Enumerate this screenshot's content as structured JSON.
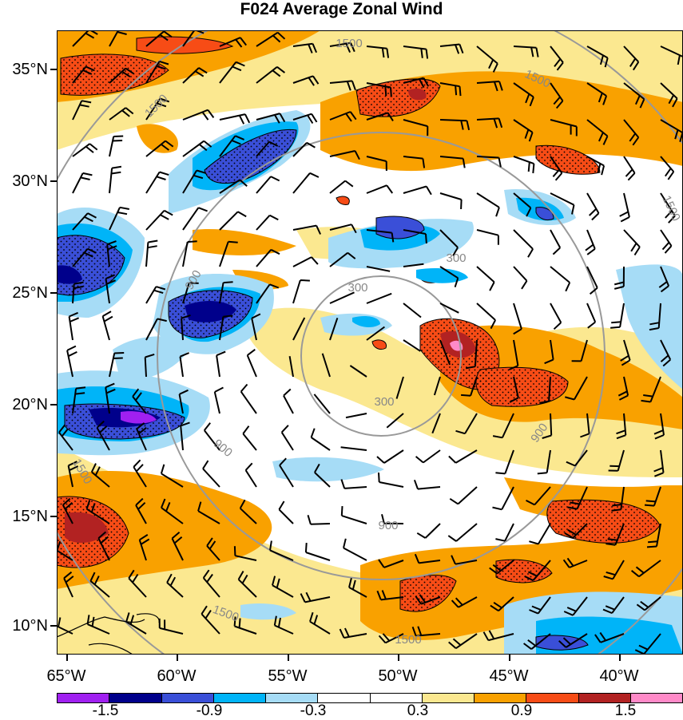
{
  "title": "F024 Average Zonal Wind",
  "lat_labels": [
    "35°N",
    "30°N",
    "25°N",
    "20°N",
    "15°N",
    "10°N"
  ],
  "lon_labels": [
    "65°W",
    "60°W",
    "55°W",
    "50°W",
    "45°W",
    "40°W"
  ],
  "contour_labels": [
    "300",
    "300",
    "300",
    "900",
    "900",
    "900",
    "900",
    "1500",
    "1500",
    "1500",
    "1500",
    "1500",
    "1500",
    "1500"
  ],
  "colorbar": {
    "colors": [
      "#a020f0",
      "#00008b",
      "#3a4fd8",
      "#00b4f8",
      "#a6dcf6",
      "#ffffff",
      "#ffffff",
      "#fbe890",
      "#f9a100",
      "#f74c16",
      "#b22222",
      "#ff8ac8"
    ],
    "labels": [
      "-1.5",
      "-0.9",
      "-0.3",
      "0.3",
      "0.9",
      "1.5"
    ]
  },
  "map": {
    "extent": {
      "lon": [
        -65,
        -36.5
      ],
      "lat": [
        8.8,
        37.2
      ]
    }
  }
}
